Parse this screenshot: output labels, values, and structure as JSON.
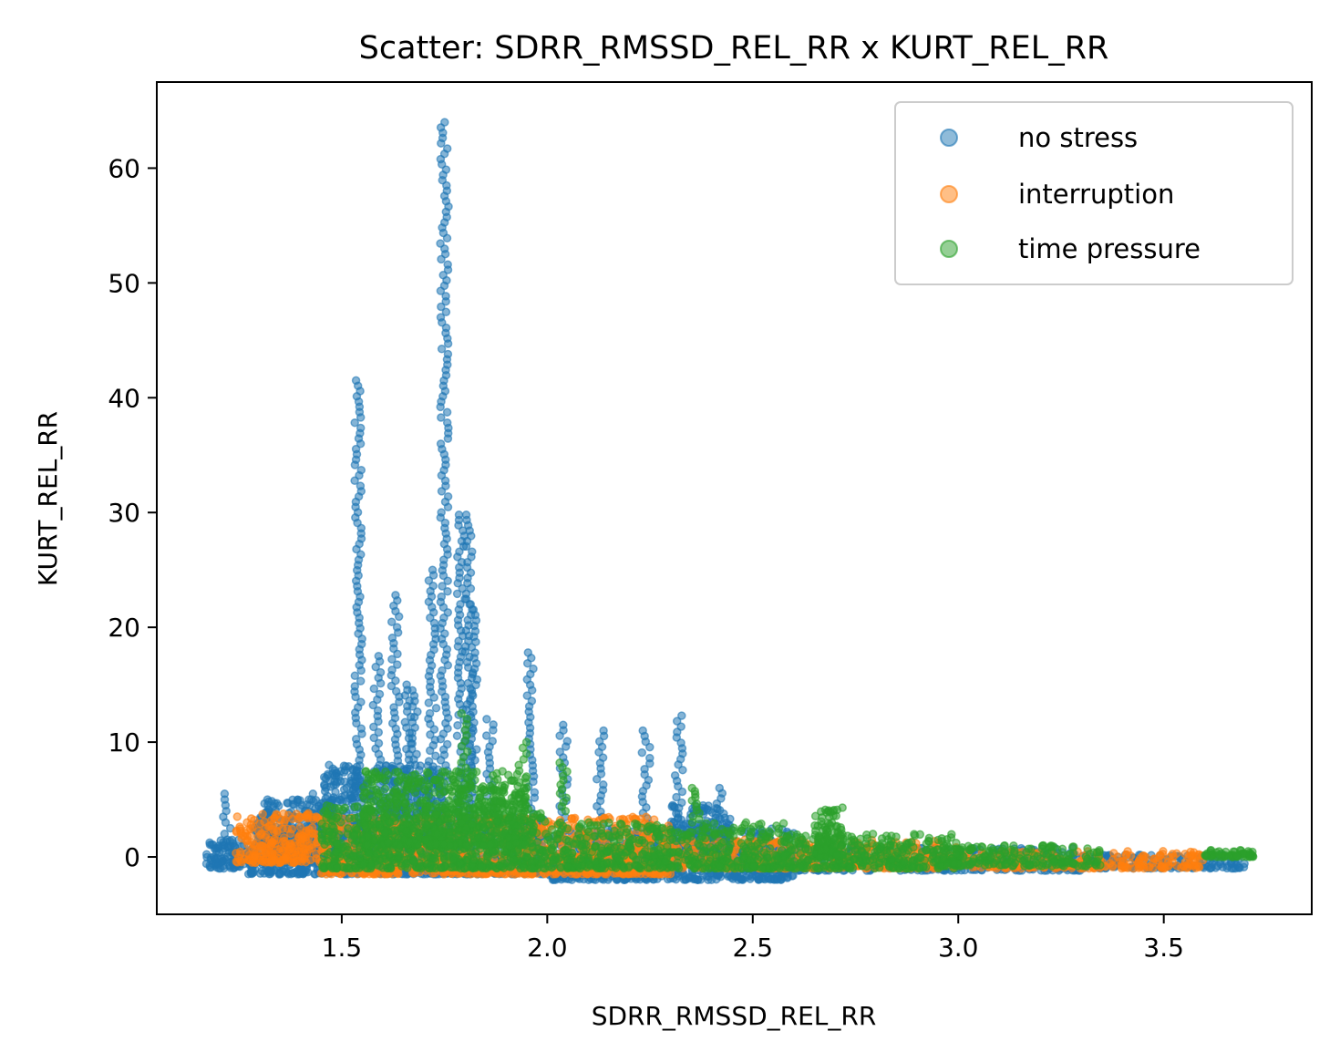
{
  "chart_data": {
    "type": "scatter",
    "title": "Scatter: SDRR_RMSSD_REL_RR x KURT_REL_RR",
    "xlabel": "SDRR_RMSSD_REL_RR",
    "ylabel": "KURT_REL_RR",
    "xlim": [
      1.05,
      3.86
    ],
    "ylim": [
      -5,
      67.5
    ],
    "x_ticks": [
      1.5,
      2.0,
      2.5,
      3.0,
      3.5
    ],
    "x_tick_labels": [
      "1.5",
      "2.0",
      "2.5",
      "3.0",
      "3.5"
    ],
    "y_ticks": [
      0,
      10,
      20,
      30,
      40,
      50,
      60
    ],
    "y_tick_labels": [
      "0",
      "10",
      "20",
      "30",
      "40",
      "50",
      "60"
    ],
    "grid": false,
    "legend_position": "top-right",
    "series": [
      {
        "name": "no stress",
        "color": "#1f77b4",
        "bands": [
          [
            1.17,
            1.27,
            -1,
            1.5
          ],
          [
            1.27,
            2.0,
            -1.5,
            3.5
          ],
          [
            1.3,
            1.48,
            -0.5,
            5
          ],
          [
            1.45,
            1.75,
            0,
            8
          ],
          [
            2.0,
            2.6,
            -2,
            2.5
          ],
          [
            2.3,
            2.45,
            0,
            4.5
          ],
          [
            2.45,
            3.3,
            -1.2,
            0.8
          ],
          [
            3.3,
            3.7,
            -1,
            0.2
          ]
        ],
        "spikes": [
          [
            1.22,
            0,
            5.5
          ],
          [
            1.32,
            0,
            5.0
          ],
          [
            1.42,
            0,
            5.5
          ],
          [
            1.475,
            0,
            8.0
          ],
          [
            1.54,
            2,
            41.5
          ],
          [
            1.585,
            8,
            17.5
          ],
          [
            1.63,
            0,
            22.8
          ],
          [
            1.66,
            1,
            15.0
          ],
          [
            1.68,
            2,
            14.5
          ],
          [
            1.72,
            0,
            25.0
          ],
          [
            1.75,
            2,
            64
          ],
          [
            1.79,
            0,
            29.8
          ],
          [
            1.81,
            0,
            29.8
          ],
          [
            1.82,
            0,
            22.0
          ],
          [
            1.86,
            1,
            12.0
          ],
          [
            1.96,
            0,
            17.8
          ],
          [
            2.04,
            3,
            11.5
          ],
          [
            2.13,
            3,
            11.0
          ],
          [
            2.24,
            0,
            11.0
          ],
          [
            2.32,
            0,
            12.3
          ],
          [
            2.42,
            1,
            6.0
          ]
        ]
      },
      {
        "name": "interruption",
        "color": "#ff7f0e",
        "bands": [
          [
            1.24,
            1.45,
            -0.5,
            3.8
          ],
          [
            1.45,
            2.3,
            -1.5,
            3.5
          ],
          [
            2.3,
            3.0,
            -1,
            1.5
          ],
          [
            3.0,
            3.6,
            -1,
            0.5
          ]
        ],
        "spikes": []
      },
      {
        "name": "time pressure",
        "color": "#2ca02c",
        "bands": [
          [
            1.45,
            2.0,
            -1,
            4.5
          ],
          [
            1.55,
            1.95,
            1,
            7.5
          ],
          [
            2.0,
            2.6,
            -1,
            3.0
          ],
          [
            2.6,
            3.0,
            -1,
            2.0
          ],
          [
            2.65,
            2.72,
            0,
            4.3
          ],
          [
            2.95,
            3.35,
            -0.8,
            1.0
          ],
          [
            3.6,
            3.72,
            0,
            0.6
          ]
        ],
        "spikes": [
          [
            1.8,
            3,
            12.5
          ],
          [
            1.94,
            3,
            10
          ],
          [
            2.04,
            4,
            8.2
          ],
          [
            2.36,
            3,
            6.0
          ]
        ]
      }
    ]
  }
}
